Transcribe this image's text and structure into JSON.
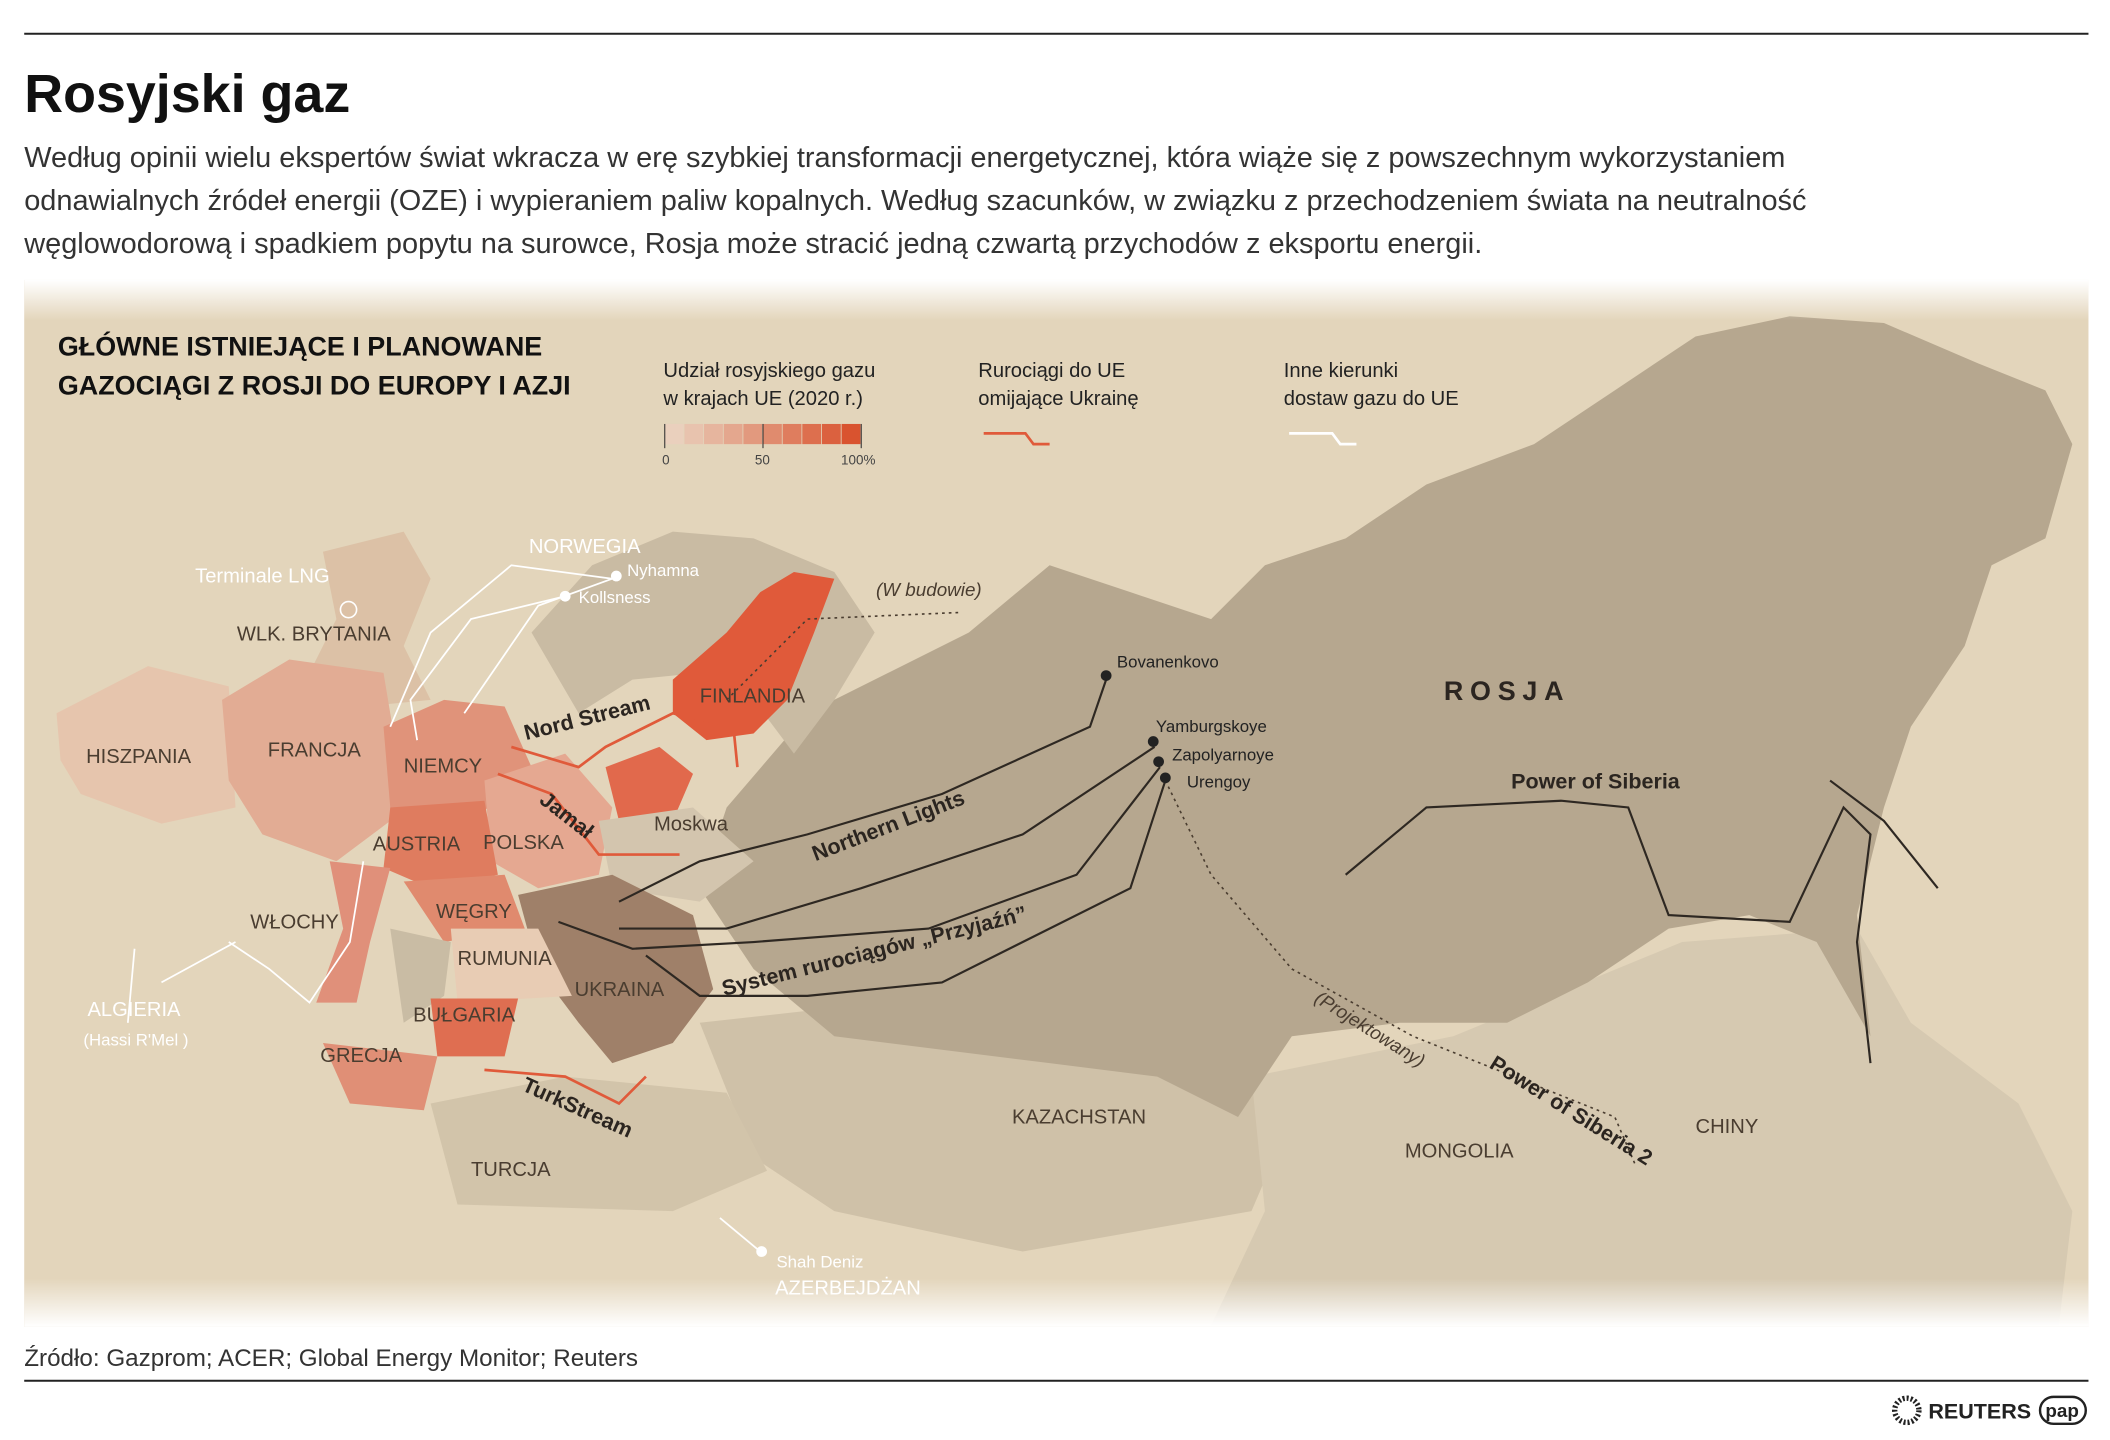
{
  "header": {
    "title": "Rosyjski gaz",
    "intro": [
      "Według opinii wielu ekspertów świat wkracza w erę szybkiej transformacji energetycznej, która wiąże się z powszechnym wykorzystaniem",
      "odnawialnych źródeł energii (OZE) i wypieraniem paliw kopalnych. Według szacunków, w związku z przechodzeniem świata na neutralność",
      "węglowodorową i spadkiem popytu na surowce, Rosja może stracić jedną czwartą przychodów z eksportu energii."
    ]
  },
  "map": {
    "title": [
      "GŁÓWNE ISTNIEJĄCE I PLANOWANE",
      "GAZOCIĄGI Z ROSJI DO EUROPY I AZJI"
    ],
    "legend": {
      "share_title": [
        "Udział rosyjskiego gazu",
        "w krajach UE (2020 r.)"
      ],
      "scale_ticks": [
        "0",
        "50",
        "100%"
      ],
      "scale_colors": [
        "#ead0bd",
        "#e8c3ae",
        "#e6b59e",
        "#e4a78e",
        "#e2997e",
        "#e08b6e",
        "#df7d5e",
        "#dd6f4e",
        "#db613f",
        "#d9532f"
      ],
      "bypass_title": [
        "Rurociągi do UE",
        "omijające Ukrainę"
      ],
      "bypass_color": "#e05a3a",
      "other_title": [
        "Inne kierunki",
        "dostaw gazu do UE"
      ],
      "other_color": "#ffffff"
    },
    "countries": {
      "norwegia": "NORWEGIA",
      "wlk_brytania": "WLK. BRYTANIA",
      "hiszpania": "HISZPANIA",
      "francja": "FRANCJA",
      "niemcy": "NIEMCY",
      "austria": "AUSTRIA",
      "polska": "POLSKA",
      "wlochy": "WŁOCHY",
      "wegry": "WĘGRY",
      "rumunia": "RUMUNIA",
      "bulgaria": "BUŁGARIA",
      "grecja": "GRECJA",
      "turcja": "TURCJA",
      "ukraina": "UKRAINA",
      "finlandia": "FINLANDIA",
      "moskwa": "Moskwa",
      "algieria": "ALGIERIA",
      "algieria_sub": "(Hassi R'Mel )",
      "rosja": "ROSJA",
      "kazachstan": "KAZACHSTAN",
      "mongolia": "MONGOLIA",
      "chiny": "CHINY",
      "azerbejdzan": "AZERBEJDŻAN"
    },
    "places": {
      "terminale_lng": "Terminale LNG",
      "nyhamna": "Nyhamna",
      "kollsness": "Kollsness",
      "shah_deniz": "Shah Deniz",
      "bovanenkovo": "Bovanenkovo",
      "yamburgskoye": "Yamburgskoye",
      "zapolyarnoye": "Zapolyarnoye",
      "urengoy": "Urengoy"
    },
    "pipelines": {
      "nord_stream": "Nord Stream",
      "jamal": "Jamał",
      "turkstream": "TurkStream",
      "northern_lights": "Northern Lights",
      "przyjazn": "System rurociągów „Przyjaźń”",
      "power_of_siberia": "Power of Siberia",
      "power_of_siberia_2": "Power of Siberia 2",
      "w_budowie": "(W budowie)",
      "projektowany": "(Projektowany)"
    }
  },
  "footer": {
    "source": "Źródło: Gazprom; ACER; Global Energy Monitor; Reuters",
    "logo_reuters": "REUTERS",
    "logo_pap": "pap"
  }
}
